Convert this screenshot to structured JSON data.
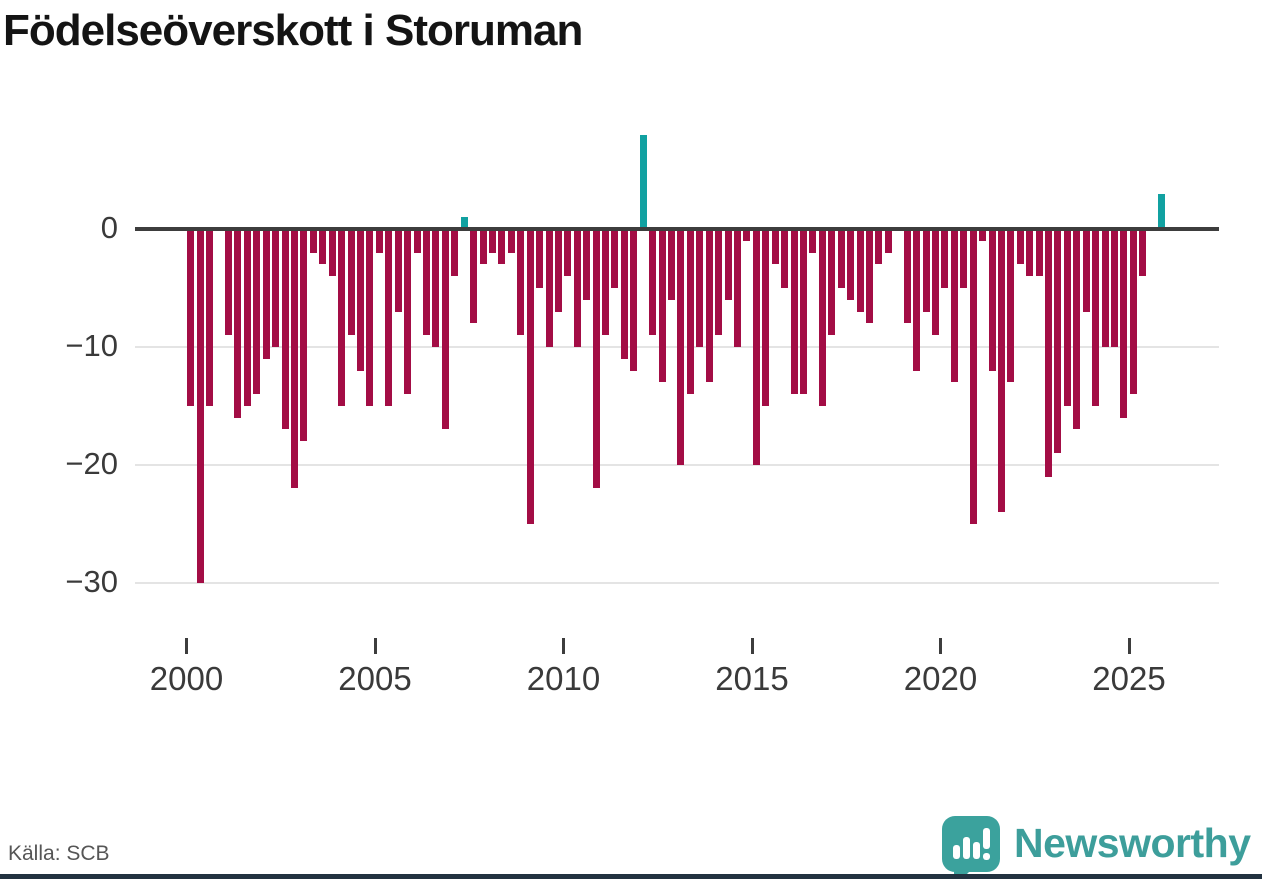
{
  "chart_data": {
    "type": "bar",
    "title": "Födelseöverskott i Storuman",
    "frequency": "quarterly",
    "x_start": {
      "year": 2000,
      "quarter": 1
    },
    "x_tick_labels": [
      "2000",
      "2005",
      "2010",
      "2015",
      "2020",
      "2025"
    ],
    "y_ticks": [
      0,
      -10,
      -20,
      -30
    ],
    "ylim": [
      -31,
      9
    ],
    "grid": "horizontal",
    "legend": "none",
    "colors": {
      "negative": "#a30d45",
      "positive": "#11a1a1"
    },
    "values": [
      -15,
      -30,
      -15,
      0,
      -9,
      -16,
      -15,
      -14,
      -11,
      -10,
      -17,
      -22,
      -18,
      -2,
      -3,
      -4,
      -15,
      -9,
      -12,
      -15,
      -2,
      -15,
      -7,
      -14,
      -2,
      -9,
      -10,
      -17,
      -4,
      1,
      -8,
      -3,
      -2,
      -3,
      -2,
      -9,
      -25,
      -5,
      -10,
      -7,
      -4,
      -10,
      -6,
      -22,
      -9,
      -5,
      -11,
      -12,
      8,
      -9,
      -13,
      -6,
      -20,
      -14,
      -10,
      -13,
      -9,
      -6,
      -10,
      -1,
      -20,
      -15,
      -3,
      -5,
      -14,
      -14,
      -2,
      -15,
      -9,
      -5,
      -6,
      -7,
      -8,
      -3,
      -2,
      0,
      -8,
      -12,
      -7,
      -9,
      -5,
      -13,
      -5,
      -25,
      -1,
      -12,
      -24,
      -13,
      -3,
      -4,
      -4,
      -21,
      -19,
      -15,
      -17,
      -7,
      -15,
      -10,
      -10,
      -16,
      -14,
      -4,
      0,
      3
    ]
  },
  "footer": {
    "source": "Källa: SCB",
    "brand": "Newsworthy"
  }
}
